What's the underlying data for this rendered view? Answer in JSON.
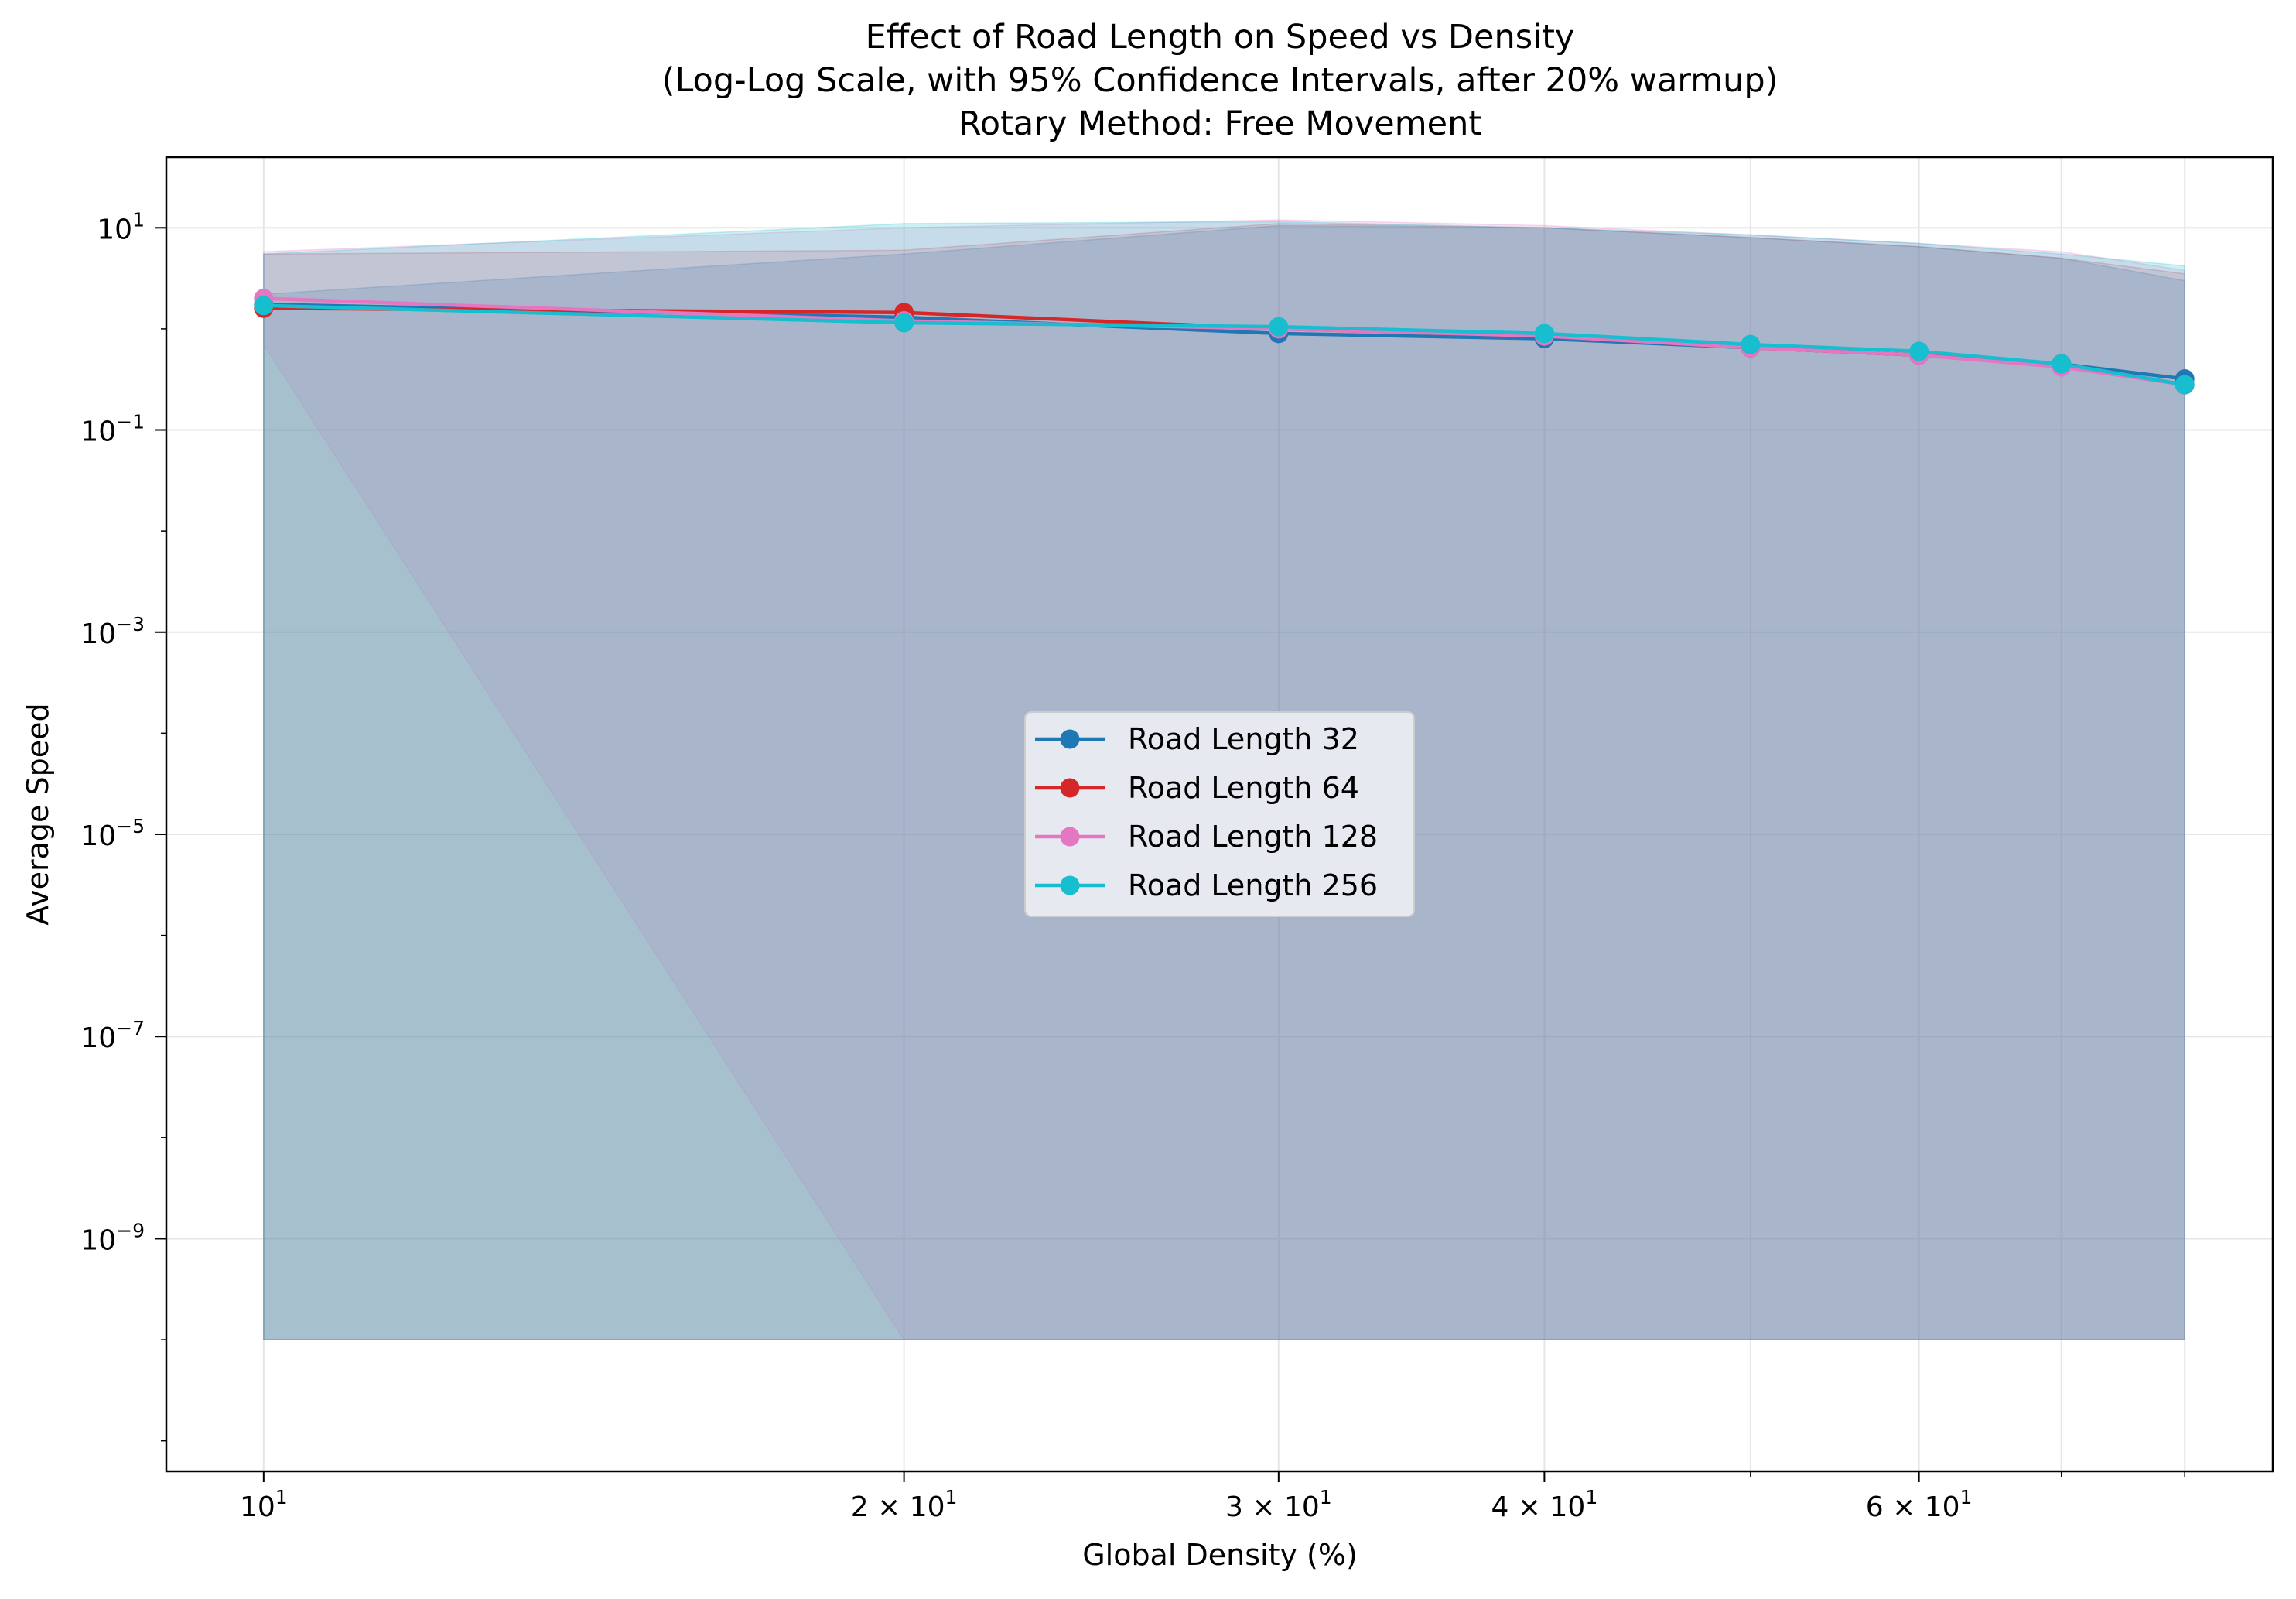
{
  "chart_data": {
    "type": "line",
    "title_lines": [
      "Effect of Road Length on Speed vs Density",
      "(Log-Log Scale, with 95% Confidence Intervals, after 20% warmup)",
      "Rotary Method: Free Movement"
    ],
    "xlabel": "Global Density (%)",
    "ylabel": "Average Speed",
    "xscale": "log",
    "yscale": "log",
    "xlim": [
      9.0,
      88.0
    ],
    "ylim": [
      5e-12,
      50
    ],
    "grid": true,
    "legend_placement": "center",
    "x_ticks": [
      {
        "value": 10,
        "base": "10",
        "exp": "1"
      },
      {
        "value": 20,
        "base": "2 × 10",
        "exp": "1"
      },
      {
        "value": 30,
        "base": "3 × 10",
        "exp": "1"
      },
      {
        "value": 40,
        "base": "4 × 10",
        "exp": "1"
      },
      {
        "value": 60,
        "base": "6 × 10",
        "exp": "1"
      }
    ],
    "x_minor_ticks": [
      50,
      70,
      80
    ],
    "y_ticks": [
      {
        "value": 10,
        "base": "10",
        "exp": "1"
      },
      {
        "value": 0.1,
        "base": "10",
        "exp": "−1"
      },
      {
        "value": 0.001,
        "base": "10",
        "exp": "−3"
      },
      {
        "value": 1e-05,
        "base": "10",
        "exp": "−5"
      },
      {
        "value": 1e-07,
        "base": "10",
        "exp": "−7"
      },
      {
        "value": 1e-09,
        "base": "10",
        "exp": "−9"
      }
    ],
    "x": [
      10,
      20,
      30,
      40,
      50,
      60,
      70,
      80
    ],
    "series": [
      {
        "name": "Road Length 32",
        "color": "#1f77b4",
        "values": [
          1.75,
          1.3,
          0.9,
          0.8,
          0.65,
          0.55,
          0.45,
          0.32
        ],
        "ci_low": [
          1e-10,
          1e-10,
          1e-10,
          1e-10,
          1e-10,
          1e-10,
          1e-10,
          1e-10
        ],
        "ci_high": [
          2.2,
          5.5,
          10.5,
          10,
          8,
          6.5,
          5,
          3
        ]
      },
      {
        "name": "Road Length 64",
        "color": "#d62728",
        "values": [
          1.6,
          1.45,
          1.0,
          0.85,
          0.65,
          0.55,
          0.45,
          0.28
        ],
        "ci_low": [
          1e-10,
          1e-10,
          1e-10,
          1e-10,
          1e-10,
          1e-10,
          1e-10,
          1e-10
        ],
        "ci_high": [
          5.5,
          6,
          11,
          10,
          8,
          6.5,
          5,
          3.5
        ]
      },
      {
        "name": "Road Length 128",
        "color": "#e377c2",
        "values": [
          2.0,
          1.2,
          1.0,
          0.85,
          0.65,
          0.55,
          0.42,
          0.28
        ],
        "ci_low": [
          0.7,
          1e-10,
          1e-10,
          1e-10,
          1e-10,
          1e-10,
          1e-10,
          1e-10
        ],
        "ci_high": [
          5.8,
          10,
          12,
          10.5,
          8.5,
          7,
          5.8,
          3.8
        ]
      },
      {
        "name": "Road Length 256",
        "color": "#17becf",
        "values": [
          1.7,
          1.15,
          1.05,
          0.9,
          0.7,
          0.6,
          0.45,
          0.28
        ],
        "ci_low": [
          1e-10,
          1e-10,
          1e-10,
          1e-10,
          1e-10,
          1e-10,
          1e-10,
          1e-10
        ],
        "ci_high": [
          5.5,
          11,
          11.5,
          10,
          8.5,
          7,
          5.5,
          4.2
        ]
      }
    ]
  }
}
